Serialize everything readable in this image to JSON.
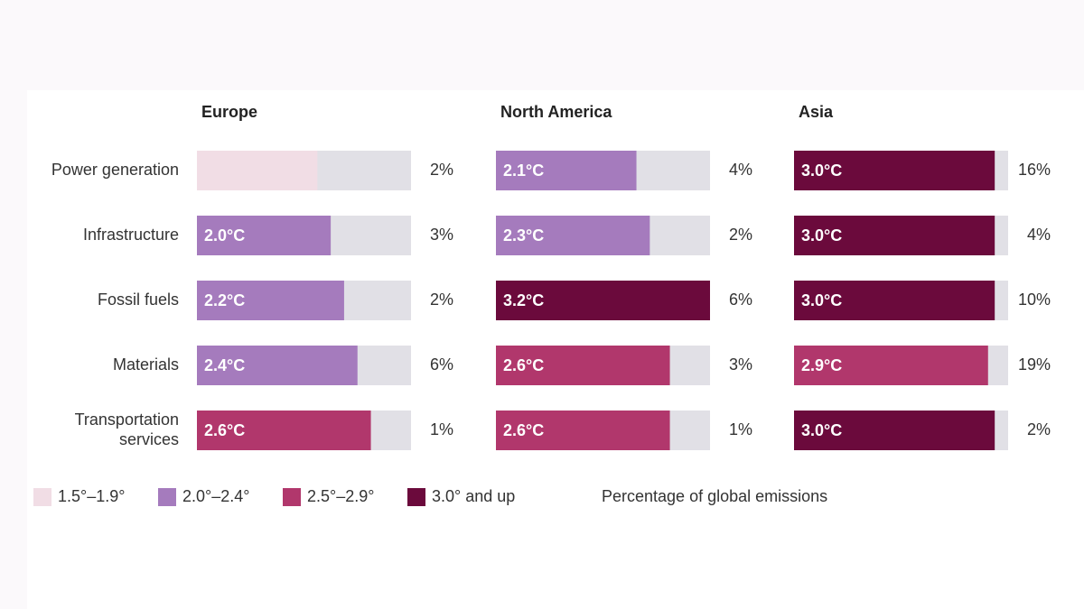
{
  "chart_data": {
    "type": "bar",
    "categories": [
      "Power generation",
      "Infrastructure",
      "Fossil fuels",
      "Materials",
      "Transportation services"
    ],
    "xlim": [
      0,
      3.2
    ],
    "track_color": "#e1e0e6",
    "series": [
      {
        "name": "Europe",
        "values": [
          1.8,
          2.0,
          2.2,
          2.4,
          2.6
        ],
        "value_labels": [
          null,
          "2.0°C",
          "2.2°C",
          "2.4°C",
          "2.6°C"
        ],
        "colors": [
          "#f1dde5",
          "#a57bbd",
          "#a57bbd",
          "#a57bbd",
          "#b1376c"
        ],
        "shares": [
          2,
          3,
          2,
          6,
          1
        ],
        "share_labels": [
          "2%",
          "3%",
          "2%",
          "6%",
          "1%"
        ]
      },
      {
        "name": "North America",
        "values": [
          2.1,
          2.3,
          3.2,
          2.6,
          2.6
        ],
        "value_labels": [
          "2.1°C",
          "2.3°C",
          "3.2°C",
          "2.6°C",
          "2.6°C"
        ],
        "colors": [
          "#a57bbd",
          "#a57bbd",
          "#6b0a3c",
          "#b1376c",
          "#b1376c"
        ],
        "shares": [
          4,
          2,
          6,
          3,
          1
        ],
        "share_labels": [
          "4%",
          "2%",
          "6%",
          "3%",
          "1%"
        ]
      },
      {
        "name": "Asia",
        "values": [
          3.0,
          3.0,
          3.0,
          2.9,
          3.0
        ],
        "value_labels": [
          "3.0°C",
          "3.0°C",
          "3.0°C",
          "2.9°C",
          "3.0°C"
        ],
        "colors": [
          "#6b0a3c",
          "#6b0a3c",
          "#6b0a3c",
          "#b1376c",
          "#6b0a3c"
        ],
        "shares": [
          16,
          4,
          10,
          19,
          2
        ],
        "share_labels": [
          "16%",
          "4%",
          "10%",
          "19%",
          "2%"
        ]
      }
    ],
    "legend": [
      {
        "name": "1.5°–1.9°",
        "color": "#f1dde5"
      },
      {
        "name": "2.0°–2.4°",
        "color": "#a57bbd"
      },
      {
        "name": "2.5°–2.9°",
        "color": "#b1376c"
      },
      {
        "name": "3.0° and up",
        "color": "#6b0a3c"
      }
    ],
    "share_note": "Percentage of global emissions"
  }
}
